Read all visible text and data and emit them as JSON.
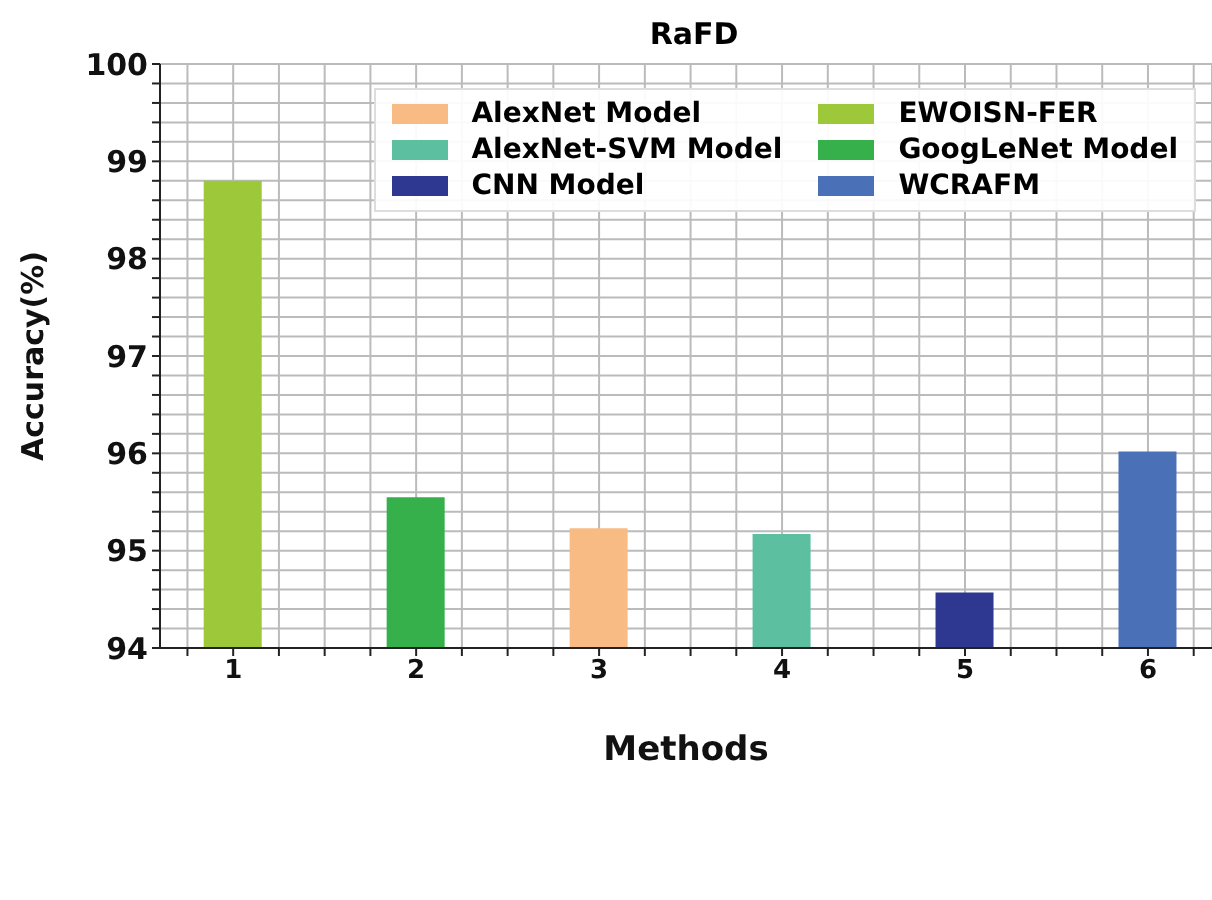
{
  "chart_data": {
    "type": "bar",
    "title": "RaFD",
    "xlabel": "Methods",
    "ylabel": "Accuracy(%)",
    "x": [
      1,
      2,
      3,
      4,
      5,
      6
    ],
    "series": [
      {
        "name": "EWOISN-FER",
        "color": "#9dc83a",
        "values": [
          98.8,
          null,
          null,
          null,
          null,
          null
        ]
      },
      {
        "name": "GoogLeNet Model",
        "color": "#35b04a",
        "values": [
          null,
          95.55,
          null,
          null,
          null,
          null
        ]
      },
      {
        "name": "AlexNet Model",
        "color": "#f9bb84",
        "values": [
          null,
          null,
          95.23,
          null,
          null,
          null
        ]
      },
      {
        "name": "AlexNet-SVM Model",
        "color": "#5cc0a0",
        "values": [
          null,
          null,
          null,
          95.17,
          null,
          null
        ]
      },
      {
        "name": "CNN Model",
        "color": "#2e3891",
        "values": [
          null,
          null,
          null,
          null,
          94.57,
          null
        ]
      },
      {
        "name": "WCRAFM",
        "color": "#4a70b8",
        "values": [
          null,
          null,
          null,
          null,
          null,
          96.02
        ]
      }
    ],
    "xlim": [
      0.6,
      6.35
    ],
    "xticks": [
      {
        "value": 0.75,
        "label": null
      },
      1,
      {
        "value": 1.25,
        "label": null
      },
      {
        "value": 1.5,
        "label": null
      },
      {
        "value": 1.75,
        "label": null
      },
      2,
      {
        "value": 2.25,
        "label": null
      },
      {
        "value": 2.5,
        "label": null
      },
      {
        "value": 2.75,
        "label": null
      },
      3,
      {
        "value": 3.25,
        "label": null
      },
      {
        "value": 3.5,
        "label": null
      },
      {
        "value": 3.75,
        "label": null
      },
      4,
      {
        "value": 4.25,
        "label": null
      },
      {
        "value": 4.5,
        "label": null
      },
      {
        "value": 4.75,
        "label": null
      },
      5,
      {
        "value": 5.25,
        "label": null
      },
      {
        "value": 5.5,
        "label": null
      },
      {
        "value": 5.75,
        "label": null
      },
      6,
      {
        "value": 6.25,
        "label": null
      }
    ],
    "ylim": [
      94,
      100
    ],
    "yticks": [
      94,
      {
        "value": 94.2,
        "label": null
      },
      {
        "value": 94.4,
        "label": null
      },
      {
        "value": 94.6,
        "label": null
      },
      {
        "value": 94.8,
        "label": null
      },
      95,
      {
        "value": 95.2,
        "label": null
      },
      {
        "value": 95.4,
        "label": null
      },
      {
        "value": 95.6,
        "label": null
      },
      {
        "value": 95.8,
        "label": null
      },
      96,
      {
        "value": 96.2,
        "label": null
      },
      {
        "value": 96.4,
        "label": null
      },
      {
        "value": 96.6,
        "label": null
      },
      {
        "value": 96.8,
        "label": null
      },
      97,
      {
        "value": 97.2,
        "label": null
      },
      {
        "value": 97.4,
        "label": null
      },
      {
        "value": 97.6,
        "label": null
      },
      {
        "value": 97.8,
        "label": null
      },
      98,
      {
        "value": 98.2,
        "label": null
      },
      {
        "value": 98.4,
        "label": null
      },
      {
        "value": 98.6,
        "label": null
      },
      {
        "value": 98.8,
        "label": null
      },
      99,
      {
        "value": 99.2,
        "label": null
      },
      {
        "value": 99.4,
        "label": null
      },
      {
        "value": 99.6,
        "label": null
      },
      {
        "value": 99.8,
        "label": null
      },
      100
    ],
    "grid": true,
    "legend": "top right"
  }
}
